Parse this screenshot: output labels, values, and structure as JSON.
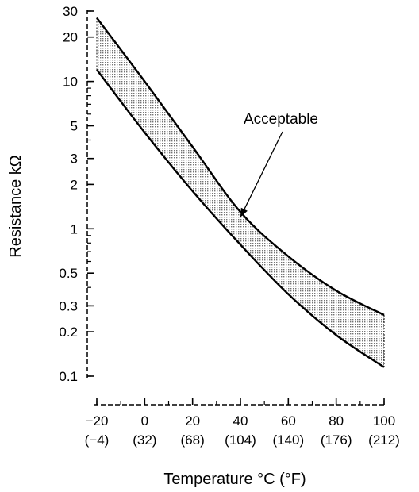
{
  "chart_data": {
    "type": "area",
    "xlabel": "Temperature °C (°F)",
    "ylabel": "Resistance kΩ",
    "y_scale": "log",
    "xlim": [
      -20,
      100
    ],
    "ylim": [
      0.1,
      30
    ],
    "grid": false,
    "x_ticks": [
      {
        "value": -20,
        "label": "−20",
        "sublabel": "(−4)"
      },
      {
        "value": 0,
        "label": "0",
        "sublabel": "(32)"
      },
      {
        "value": 20,
        "label": "20",
        "sublabel": "(68)"
      },
      {
        "value": 40,
        "label": "40",
        "sublabel": "(104)"
      },
      {
        "value": 60,
        "label": "60",
        "sublabel": "(140)"
      },
      {
        "value": 80,
        "label": "80",
        "sublabel": "(176)"
      },
      {
        "value": 100,
        "label": "100",
        "sublabel": "(212)"
      }
    ],
    "y_ticks": [
      {
        "value": 30,
        "label": "30"
      },
      {
        "value": 20,
        "label": "20"
      },
      {
        "value": 10,
        "label": "10"
      },
      {
        "value": 5,
        "label": "5"
      },
      {
        "value": 3,
        "label": "3"
      },
      {
        "value": 2,
        "label": "2"
      },
      {
        "value": 1,
        "label": "1"
      },
      {
        "value": 0.5,
        "label": "0.5"
      },
      {
        "value": 0.3,
        "label": "0.3"
      },
      {
        "value": 0.2,
        "label": "0.2"
      },
      {
        "value": 0.1,
        "label": "0.1"
      }
    ],
    "series": [
      {
        "role": "upper",
        "x": [
          -20,
          0,
          20,
          40,
          60,
          80,
          100
        ],
        "values": [
          27,
          10,
          3.6,
          1.3,
          0.65,
          0.38,
          0.26
        ]
      },
      {
        "role": "lower",
        "x": [
          -20,
          0,
          20,
          40,
          60,
          80,
          100
        ],
        "values": [
          12,
          4.5,
          1.8,
          0.78,
          0.36,
          0.19,
          0.115
        ]
      }
    ],
    "band_label": "Acceptable",
    "annotation_target": {
      "x": 40,
      "y": 1.2
    }
  }
}
